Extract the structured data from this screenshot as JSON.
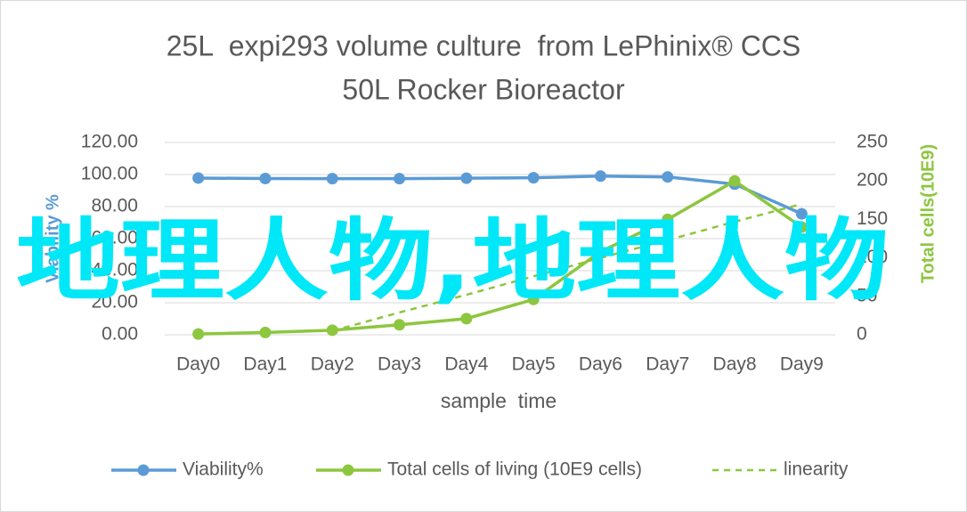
{
  "chart_data": {
    "type": "line",
    "title": [
      "25L  expi293 volume culture  from LePhinix® CCS",
      "50L Rocker Bioreactor"
    ],
    "xlabel": "sample  time",
    "ylabel": "Viability %",
    "y2label": "Total cells(10E9)",
    "watermark": "地理人物,地理人物",
    "categories": [
      "Day0",
      "Day1",
      "Day2",
      "Day3",
      "Day4",
      "Day5",
      "Day6",
      "Day7",
      "Day8",
      "Day9"
    ],
    "series": [
      {
        "name": "Viability%",
        "color": "#5b9bd5",
        "axis": "y",
        "marker": true,
        "values": [
          97.8,
          97.5,
          97.4,
          97.4,
          97.7,
          98,
          99,
          98.5,
          94,
          75.5
        ]
      },
      {
        "name": "Total cells of living (10E9 cells)",
        "color": "#8dc63f",
        "axis": "y2",
        "marker": true,
        "values": [
          1,
          3,
          6,
          13,
          21,
          46,
          108,
          150,
          200,
          140
        ]
      },
      {
        "name": "linearity",
        "color": "#8dc63f",
        "axis": "y2",
        "dashed": true,
        "values": [
          null,
          null,
          5,
          29,
          52,
          76,
          100,
          123,
          147,
          170
        ]
      }
    ],
    "ylim": [
      0,
      120
    ],
    "yticks": [
      {
        "value": 0,
        "label": "0.00"
      },
      {
        "value": 20,
        "label": "20.00"
      },
      {
        "value": 40,
        "label": "40.00"
      },
      {
        "value": 60,
        "label": "60.00"
      },
      {
        "value": 80,
        "label": "80.00"
      },
      {
        "value": 100,
        "label": "100.00"
      },
      {
        "value": 120,
        "label": "120.00"
      }
    ],
    "y2lim": [
      0,
      250
    ],
    "y2ticks": [
      0,
      50,
      100,
      150,
      200,
      250
    ],
    "grid": true,
    "legend": "bottom"
  }
}
